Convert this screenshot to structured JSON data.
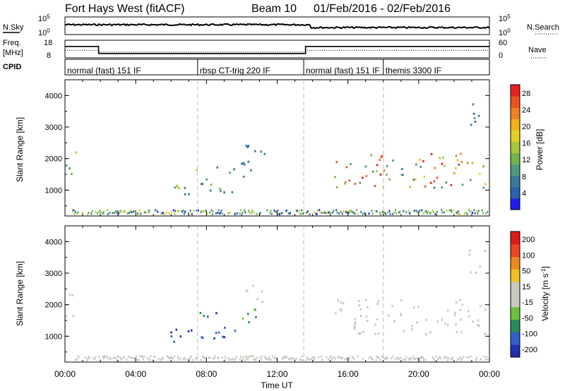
{
  "header": {
    "station": "Fort Hays West (fitACF)",
    "beam": "Beam 10",
    "date_range": "01/Feb/2016 - 02/Feb/2016"
  },
  "side_labels": {
    "nsky": "N.Sky",
    "freq_top": "Freq.",
    "freq_unit": "[MHz]",
    "cpid": "CPID",
    "nsearch": "N.Search",
    "nave": "Nave"
  },
  "noise_panel": {
    "left_ticks": [
      "10^5",
      "10^0"
    ],
    "right_ticks": [
      "10^5",
      "10^0"
    ]
  },
  "freq_panel": {
    "left_ticks": [
      "18",
      "8"
    ],
    "right_ticks": [
      "60",
      "0"
    ],
    "freq_line": [
      [
        0,
        14.5
      ],
      [
        1.9,
        14.5
      ],
      [
        1.9,
        10.5
      ],
      [
        13.6,
        10.5
      ],
      [
        13.6,
        14.5
      ],
      [
        24,
        14.5
      ]
    ],
    "nave_line": [
      [
        0,
        26
      ],
      [
        1.9,
        26
      ],
      [
        1.9,
        20
      ],
      [
        13.6,
        20
      ],
      [
        13.6,
        26
      ],
      [
        24,
        26
      ]
    ]
  },
  "cpid_panel": {
    "segments": [
      {
        "start": 0,
        "label": "normal (fast) 151 IF"
      },
      {
        "start": 7.5,
        "label": "rbsp CT-trig 220 IF"
      },
      {
        "start": 13.5,
        "label": "normal (fast) 151 IF"
      },
      {
        "start": 18,
        "label": "themis 3300 IF"
      }
    ]
  },
  "chart_data": [
    {
      "type": "heatmap",
      "name": "power",
      "ylabel": "Slant Range [km]",
      "xlabel": "Time UT",
      "x_ticks": [
        "00:00",
        "04:00",
        "08:00",
        "12:00",
        "16:00",
        "20:00",
        "00:00"
      ],
      "y_ticks": [
        "1000",
        "2000",
        "3000",
        "4000"
      ],
      "xlim": [
        0,
        24
      ],
      "ylim": [
        180,
        4500
      ],
      "colorbar_label": "Power [dB]",
      "colorbar_ticks": [
        "4",
        "8",
        "12",
        "16",
        "20",
        "24",
        "28"
      ],
      "colorbar_colors": [
        "#1e1ef0",
        "#2e62b0",
        "#3a7a9a",
        "#4e9a7a",
        "#72b44a",
        "#a8c83a",
        "#e2d022",
        "#f0b018",
        "#f08020",
        "#ee5020",
        "#e82020"
      ],
      "vmin": 0,
      "vmax": 30
    },
    {
      "type": "heatmap",
      "name": "velocity",
      "ylabel": "Slant Range [km]",
      "xlabel": "Time UT",
      "x_ticks": [
        "00:00",
        "04:00",
        "08:00",
        "12:00",
        "16:00",
        "20:00",
        "00:00"
      ],
      "y_ticks": [
        "1000",
        "2000",
        "3000",
        "4000"
      ],
      "xlim": [
        0,
        24
      ],
      "ylim": [
        180,
        4500
      ],
      "colorbar_label": "Velocity [m s^-1]",
      "colorbar_ticks": [
        "200",
        "100",
        "50",
        "15",
        "-15",
        "-50",
        "-100",
        "-200"
      ],
      "colorbar_colors": [
        "#2030b0",
        "#3060c8",
        "#2a8a5a",
        "#6cc040",
        "#c8c8c0",
        "#c8c8c0",
        "#f0c020",
        "#f08820",
        "#ee4420",
        "#e01818"
      ],
      "vmin": -250,
      "vmax": 250
    }
  ],
  "echo_regions": [
    {
      "t0": 0.0,
      "t1": 0.6,
      "r0": 1500,
      "r1": 2400,
      "power": [
        6,
        20
      ],
      "vel": [
        -10,
        10
      ]
    },
    {
      "t0": 5.9,
      "t1": 7.6,
      "r0": 850,
      "r1": 1400,
      "power": [
        6,
        20
      ],
      "vel": [
        -240,
        -150
      ]
    },
    {
      "t0": 7.4,
      "t1": 9.6,
      "r0": 950,
      "r1": 1800,
      "power": [
        5,
        14
      ],
      "vel": [
        -220,
        -120
      ]
    },
    {
      "t0": 9.6,
      "t1": 11.0,
      "r0": 1400,
      "r1": 2000,
      "power": [
        4,
        9
      ],
      "vel": [
        -180,
        -60
      ]
    },
    {
      "t0": 10.2,
      "t1": 11.4,
      "r0": 2100,
      "r1": 2850,
      "power": [
        4,
        9
      ],
      "vel": [
        -40,
        20
      ]
    },
    {
      "t0": 15.2,
      "t1": 23.8,
      "r0": 1100,
      "r1": 2200,
      "power": [
        6,
        30
      ],
      "vel": [
        -15,
        15
      ]
    },
    {
      "t0": 22.8,
      "t1": 23.8,
      "r0": 2950,
      "r1": 3800,
      "power": [
        4,
        9
      ],
      "vel": [
        -15,
        15
      ]
    }
  ]
}
